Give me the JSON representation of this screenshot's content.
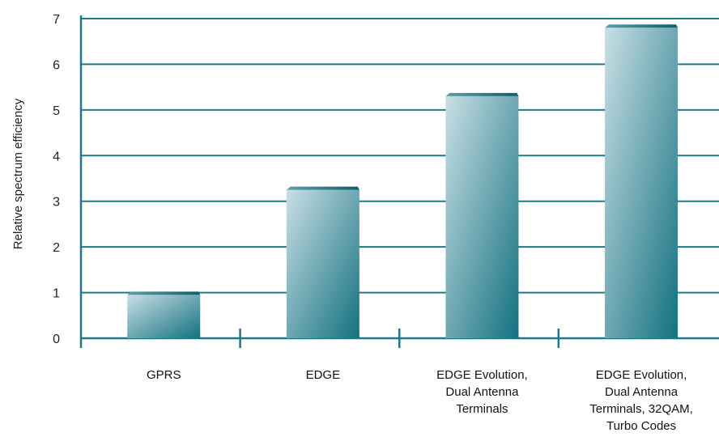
{
  "chart_data": {
    "type": "bar",
    "title": "",
    "xlabel": "",
    "ylabel": "Relative spectrum efficiency",
    "ylim": [
      0,
      7
    ],
    "yticks": [
      0,
      1,
      2,
      3,
      4,
      5,
      6,
      7
    ],
    "grid": true,
    "categories": [
      "GPRS",
      "EDGE",
      "EDGE Evolution, Dual Antenna Terminals",
      "EDGE Evolution, Dual Antenna Terminals, 32QAM, Turbo Codes"
    ],
    "category_lines": [
      [
        "GPRS"
      ],
      [
        "EDGE"
      ],
      [
        "EDGE Evolution,",
        "Dual Antenna",
        "Terminals"
      ],
      [
        "EDGE Evolution,",
        "Dual Antenna",
        "Terminals, 32QAM,",
        "Turbo Codes"
      ]
    ],
    "values": [
      0.95,
      3.25,
      5.3,
      6.8
    ],
    "colors": {
      "grid": "#1a7a8a",
      "axis": "#1a7a8a",
      "bar_light": "#c9dfe5",
      "bar_dark": "#137180"
    }
  }
}
